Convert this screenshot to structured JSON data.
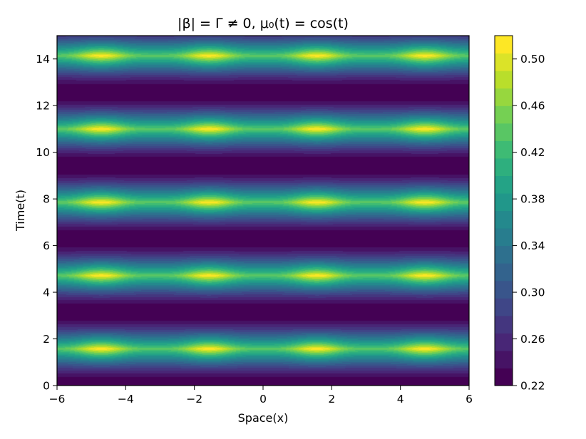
{
  "chart_data": {
    "type": "heatmap",
    "title": "|β| = Γ ≠ 0,  μ₀(t) = cos(t)",
    "xlabel": "Space(x)",
    "ylabel": "Time(t)",
    "xlim": [
      -6,
      6
    ],
    "ylim": [
      0,
      15
    ],
    "xticks": [
      -6,
      -4,
      -2,
      0,
      2,
      4,
      6
    ],
    "xtick_labels": [
      "−6",
      "−4",
      "−2",
      "0",
      "2",
      "4",
      "6"
    ],
    "yticks": [
      0,
      2,
      4,
      6,
      8,
      10,
      12,
      14
    ],
    "ytick_labels": [
      "0",
      "2",
      "4",
      "6",
      "8",
      "10",
      "12",
      "14"
    ],
    "colorbar": {
      "range": [
        0.22,
        0.52
      ],
      "levels": 20,
      "ticks": [
        0.22,
        0.26,
        0.3,
        0.34,
        0.38,
        0.42,
        0.46,
        0.5
      ],
      "tick_labels": [
        "0.22",
        "0.26",
        "0.30",
        "0.34",
        "0.38",
        "0.42",
        "0.46",
        "0.50"
      ],
      "colormap": "viridis"
    },
    "grid": false,
    "features": {
      "maxima_x": [
        -4.71,
        -1.57,
        1.57,
        4.71
      ],
      "maxima_t": [
        1.57,
        4.71,
        7.85,
        11.0,
        14.14
      ],
      "maxima_value": 0.52,
      "minima_x": [
        -6.28,
        -3.14,
        0,
        3.14,
        6.28
      ],
      "minima_t": [
        0,
        3.14,
        6.28,
        9.42,
        12.57
      ],
      "minima_value": 0.22
    }
  }
}
